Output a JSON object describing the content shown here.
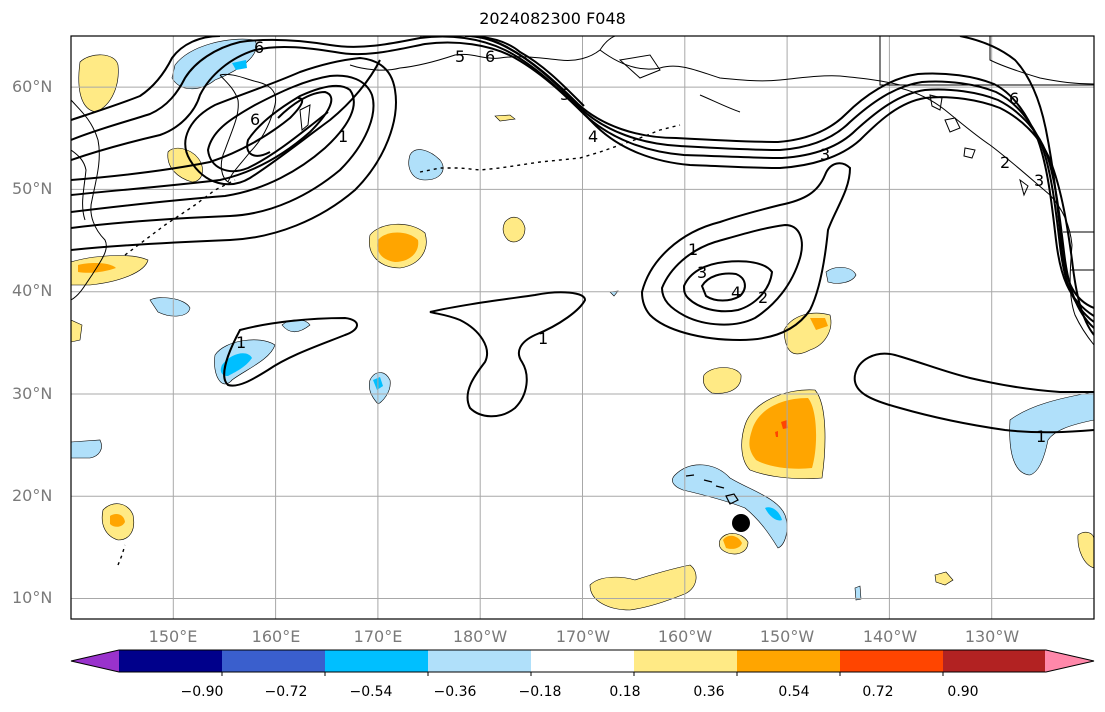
{
  "title": "2024082300 F048",
  "map": {
    "projection": "equirectangular",
    "lon_range": [
      140,
      240
    ],
    "lat_range": [
      8,
      65
    ],
    "grid": true,
    "lat_labels": [
      "10°N",
      "20°N",
      "30°N",
      "40°N",
      "50°N",
      "60°N"
    ],
    "lon_labels": [
      "150°E",
      "160°E",
      "170°E",
      "180°W",
      "170°W",
      "160°W",
      "150°W",
      "140°W",
      "130°W"
    ],
    "contour_labels": [
      "6",
      "6",
      "5",
      "6",
      "6",
      "5",
      "4",
      "3",
      "3",
      "2",
      "1",
      "1",
      "1",
      "1",
      "1",
      "2",
      "3",
      "4"
    ],
    "marker": "filled-circle"
  },
  "colorbar": {
    "colors": [
      "#9932cc",
      "#00008b",
      "#3a5fcd",
      "#00bfff",
      "#b0e0fa",
      "#ffffff",
      "#ffea85",
      "#ffa500",
      "#ff4500",
      "#b22222",
      "#ff88aa"
    ],
    "ticks": [
      "−0.90",
      "−0.72",
      "−0.54",
      "−0.36",
      "−0.18",
      "0.18",
      "0.36",
      "0.54",
      "0.72",
      "0.90"
    ],
    "extend": "both"
  }
}
